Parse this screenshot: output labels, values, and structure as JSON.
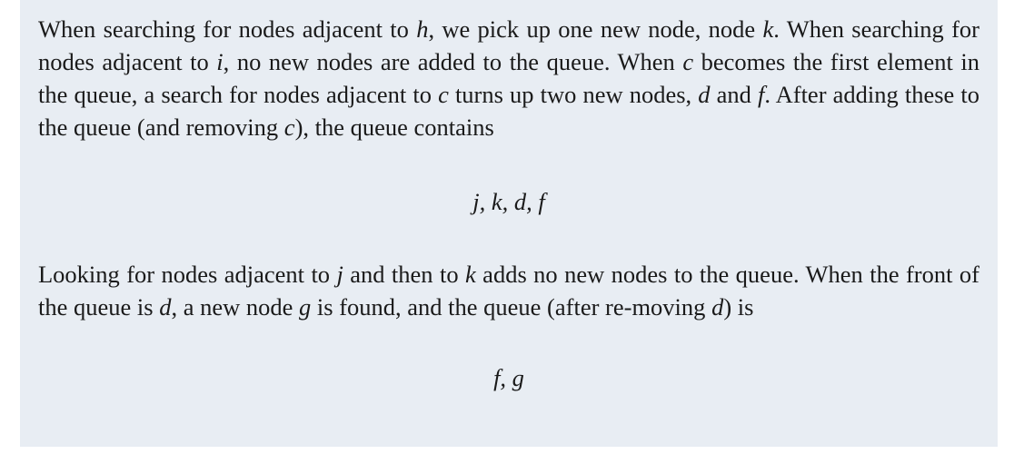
{
  "paragraphs": [
    {
      "segments": [
        "When searching for nodes adjacent to ",
        "h",
        ", we pick up one new node, node ",
        "k",
        ". When searching for nodes adjacent to ",
        "i",
        ", no new nodes are added to the queue. When ",
        "c",
        " becomes the first element in the queue, a search for nodes adjacent to ",
        "c",
        " turns up two new nodes, ",
        "d",
        " and ",
        "f",
        ". After adding these to the queue (and removing ",
        "c",
        "), the queue contains"
      ]
    },
    {
      "segments": [
        "Looking for nodes adjacent to ",
        "j",
        " and then to ",
        "k",
        " adds no new nodes to the queue. When the front of the queue is ",
        "d",
        ", a new node ",
        "g",
        " is found, and the queue (after re-moving ",
        "d",
        ") is"
      ]
    }
  ],
  "queue_states": [
    "j, k, d, f",
    "f, g"
  ]
}
